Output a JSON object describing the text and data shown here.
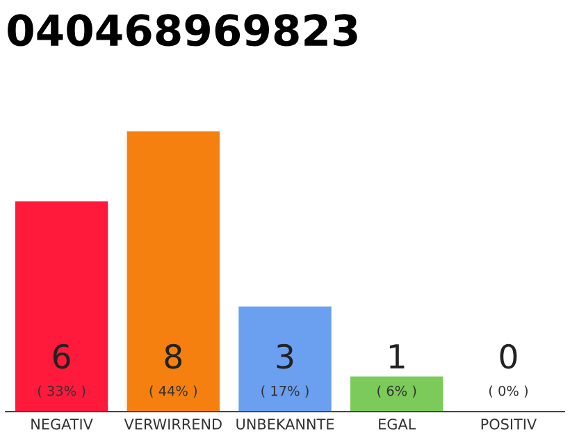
{
  "chart_data": {
    "type": "bar",
    "title": "040468969823",
    "categories": [
      "NEGATIV",
      "VERWIRREND",
      "UNBEKANNTE",
      "EGAL",
      "POSITIV"
    ],
    "values": [
      6,
      8,
      3,
      1,
      0
    ],
    "colors": [
      "#ff1a3c",
      "#f5800f",
      "#6aa0ef",
      "#7ccb5a",
      "#e0e0e0"
    ],
    "data_labels": true,
    "annotations": [
      "( 33% )",
      "( 44% )",
      "( 17% )",
      "( 6% )",
      "( 0% )"
    ],
    "grid": false,
    "legend": false
  }
}
